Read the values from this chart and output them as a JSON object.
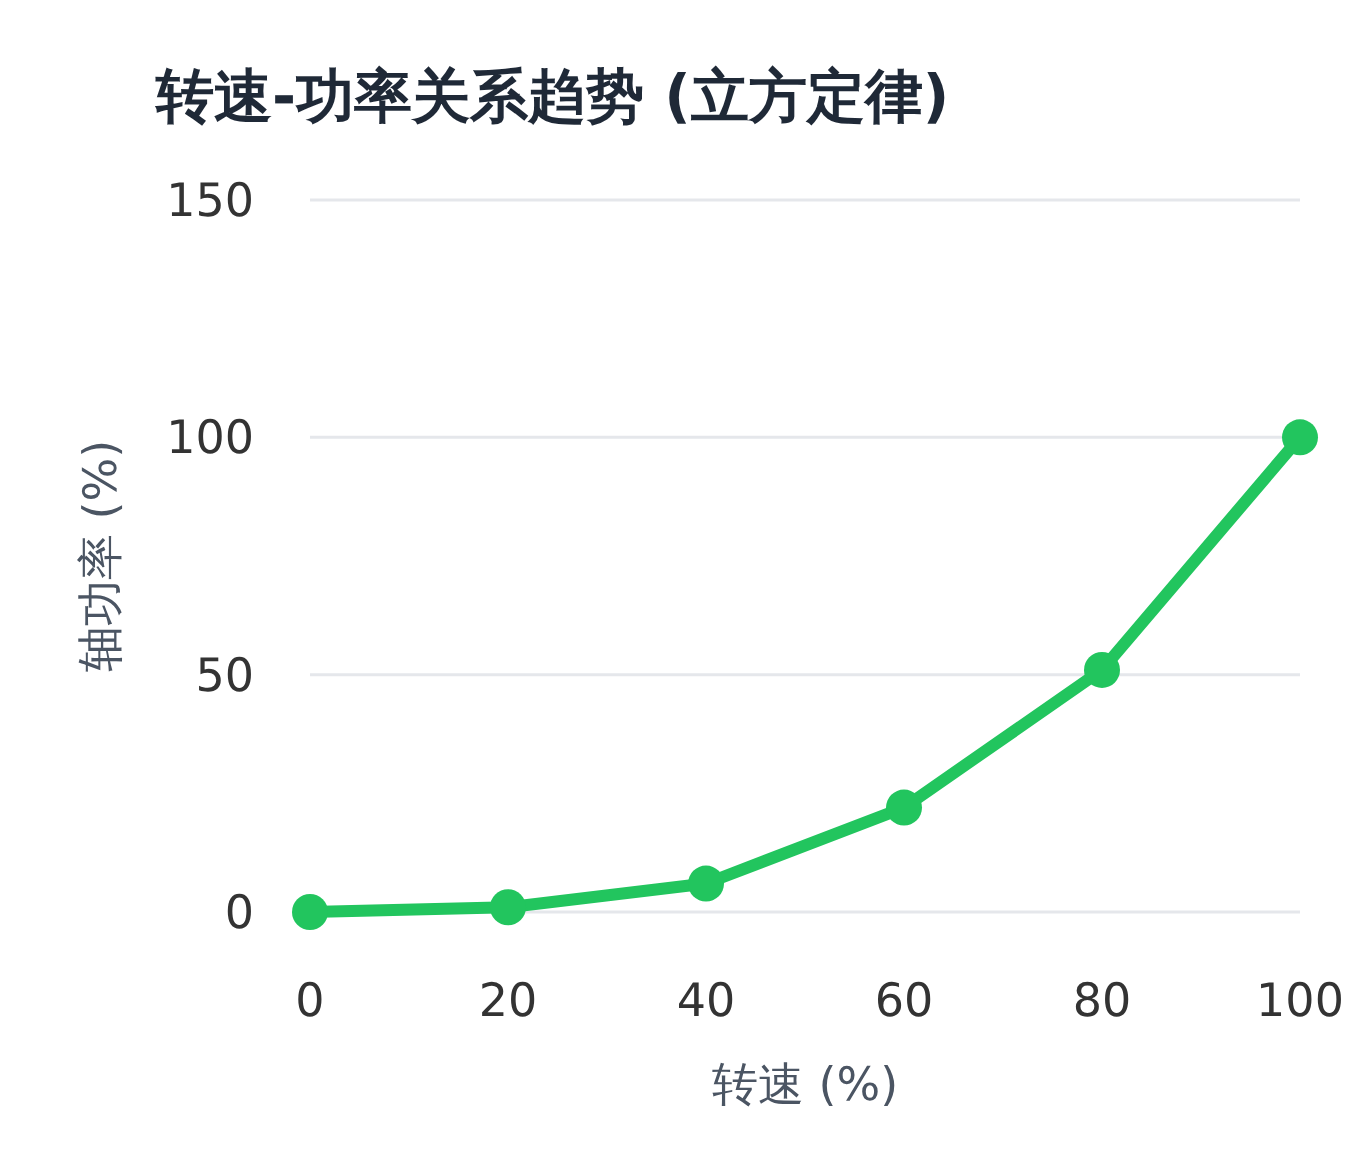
{
  "chart_data": {
    "type": "line",
    "title": "转速-功率关系趋势 (立方定律)",
    "xlabel": "转速 (%)",
    "ylabel": "轴功率 (%)",
    "x": [
      0,
      20,
      40,
      60,
      80,
      100
    ],
    "series": [
      {
        "color": "#22c55e",
        "values": [
          0,
          1,
          6,
          22,
          51,
          100
        ]
      }
    ],
    "xlim": [
      0,
      100
    ],
    "xticks": [
      0,
      20,
      40,
      60,
      80,
      100
    ],
    "ylim": [
      0,
      150
    ],
    "yticks": [
      0,
      50,
      100,
      150
    ],
    "grid": "y",
    "marker": "circle",
    "line_style": "solid"
  }
}
